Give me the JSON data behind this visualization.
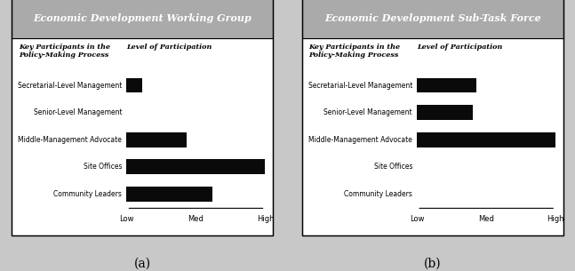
{
  "panel_a": {
    "title": "Economic Development Working Group",
    "categories": [
      "Secretarial-Level Management",
      "Senior-Level Management",
      "Middle-Management Advocate",
      "Site Offices",
      "Community Leaders"
    ],
    "values": [
      0.11,
      0.0,
      0.43,
      1.0,
      0.62
    ],
    "bar_color": "#0a0a0a",
    "header_bg": "#aaaaaa",
    "label": "(a)"
  },
  "panel_b": {
    "title": "Economic Development Sub-Task Force",
    "categories": [
      "Secretarial-Level Management",
      "Senior-Level Management",
      "Middle-Management Advocate",
      "Site Offices",
      "Community Leaders"
    ],
    "values": [
      0.43,
      0.4,
      1.0,
      0.0,
      0.0
    ],
    "bar_color": "#0a0a0a",
    "header_bg": "#aaaaaa",
    "label": "(b)"
  },
  "x_ticks": [
    "Low",
    "Med",
    "High"
  ],
  "key_header": "Key Participants in the\nPolicy-Making Process",
  "level_header": "Level of Participation",
  "outer_bg": "#c8c8c8",
  "panel_bg": "#ffffff",
  "border_color": "#000000"
}
